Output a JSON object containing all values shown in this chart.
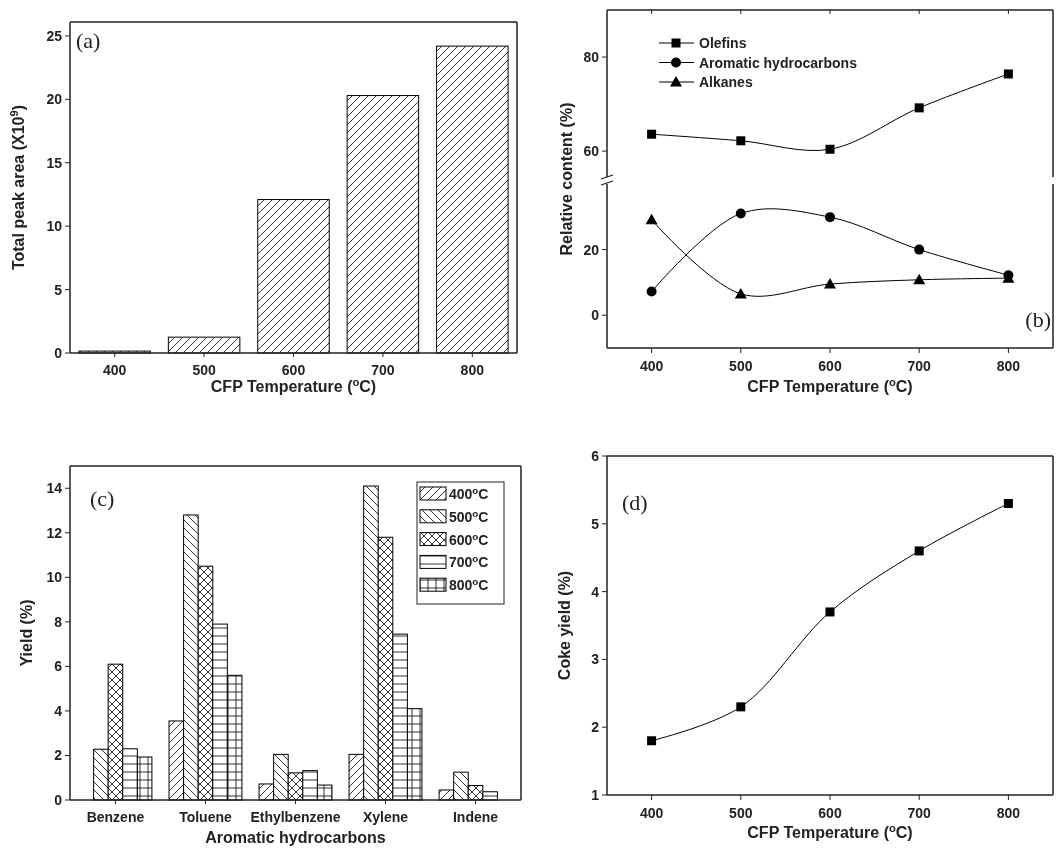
{
  "chart_data": [
    {
      "type": "bar",
      "annotations": [
        "(a)"
      ],
      "xlabel": "CFP Temperature ($^{o}$C)",
      "ylabel": "Total peak area (X10$^{9}$)",
      "categories": [
        "400",
        "500",
        "600",
        "700",
        "800"
      ],
      "values": [
        0.15,
        1.25,
        12.1,
        20.3,
        24.2
      ],
      "color": "#000000",
      "ylim": [
        0,
        26.1
      ],
      "yticks": [
        0,
        5,
        10,
        15,
        20,
        25
      ]
    },
    {
      "type": "line",
      "x": [
        400,
        500,
        600,
        700,
        800
      ],
      "xlim": [
        350,
        850
      ],
      "xticks": [
        400,
        500,
        600,
        700,
        800
      ],
      "ylim": [
        54.5,
        90
      ],
      "yticks": [
        60,
        80
      ],
      "tick_labels": "y",
      "legend": "top left",
      "line_style": "solid",
      "series": [
        {
          "name": "Olefins",
          "color": "#000000",
          "marker": "square",
          "values": [
            63.6,
            62.2,
            60.4,
            69.2,
            76.4
          ]
        }
      ]
    },
    {
      "type": "line",
      "annotations": [
        "(b)"
      ],
      "xlabel": "CFP Temperature ($^{o}$C)",
      "ylabel": "Relative content (%)",
      "x": [
        400,
        500,
        600,
        700,
        800
      ],
      "xlim": [
        350,
        850
      ],
      "xticks": [
        400,
        500,
        600,
        700,
        800
      ],
      "ylim": [
        -10,
        40
      ],
      "yticks": [
        0,
        20
      ],
      "legend": "top left",
      "line_style": "solid",
      "series": [
        {
          "name": "Aromatic hydrocarbons",
          "color": "#000000",
          "marker": "circle",
          "values": [
            7.2,
            31,
            29.9,
            20,
            12.2
          ]
        },
        {
          "name": "Alkanes",
          "color": "#000000",
          "marker": "triangle",
          "values": [
            29.1,
            6.5,
            9.5,
            10.8,
            11.3
          ]
        }
      ]
    },
    {
      "type": "bar",
      "annotations": [
        "(c)"
      ],
      "xlabel": "Aromatic hydrocarbons",
      "ylabel": "Yield (%)",
      "categories": [
        "Benzene",
        "Toluene",
        "Ethylbenzene",
        "Xylene",
        "Indene"
      ],
      "ylim": [
        0,
        15
      ],
      "yticks": [
        0,
        2,
        4,
        6,
        8,
        10,
        12,
        14
      ],
      "legend": "top right",
      "series": [
        {
          "name": "400$^{o}$C",
          "color": "#000000",
          "values": [
            null,
            3.55,
            0.72,
            2.05,
            0.45
          ]
        },
        {
          "name": "500$^{o}$C",
          "color": "#000000",
          "values": [
            2.28,
            12.8,
            2.05,
            14.1,
            1.25
          ]
        },
        {
          "name": "600$^{o}$C",
          "color": "#000000",
          "values": [
            6.1,
            10.5,
            1.22,
            11.8,
            0.65
          ]
        },
        {
          "name": "700$^{o}$C",
          "color": "#000000",
          "values": [
            2.3,
            7.9,
            1.32,
            7.45,
            0.37
          ]
        },
        {
          "name": "800$^{o}$C",
          "color": "#000000",
          "values": [
            1.93,
            5.6,
            0.67,
            4.1,
            null
          ]
        }
      ]
    },
    {
      "type": "line",
      "annotations": [
        "(d)"
      ],
      "xlabel": "CFP Temperature ($^{o}$C)",
      "ylabel": "Coke yield (%)",
      "x": [
        400,
        500,
        600,
        700,
        800
      ],
      "xlim": [
        350,
        850
      ],
      "xticks": [
        400,
        500,
        600,
        700,
        800
      ],
      "ylim": [
        1,
        6
      ],
      "yticks": [
        1,
        2,
        3,
        4,
        5,
        6
      ],
      "marker": "square",
      "line_style": "solid",
      "series": [
        {
          "color": "#000000",
          "values": [
            1.8,
            2.3,
            3.7,
            4.6,
            5.3
          ]
        }
      ]
    }
  ]
}
